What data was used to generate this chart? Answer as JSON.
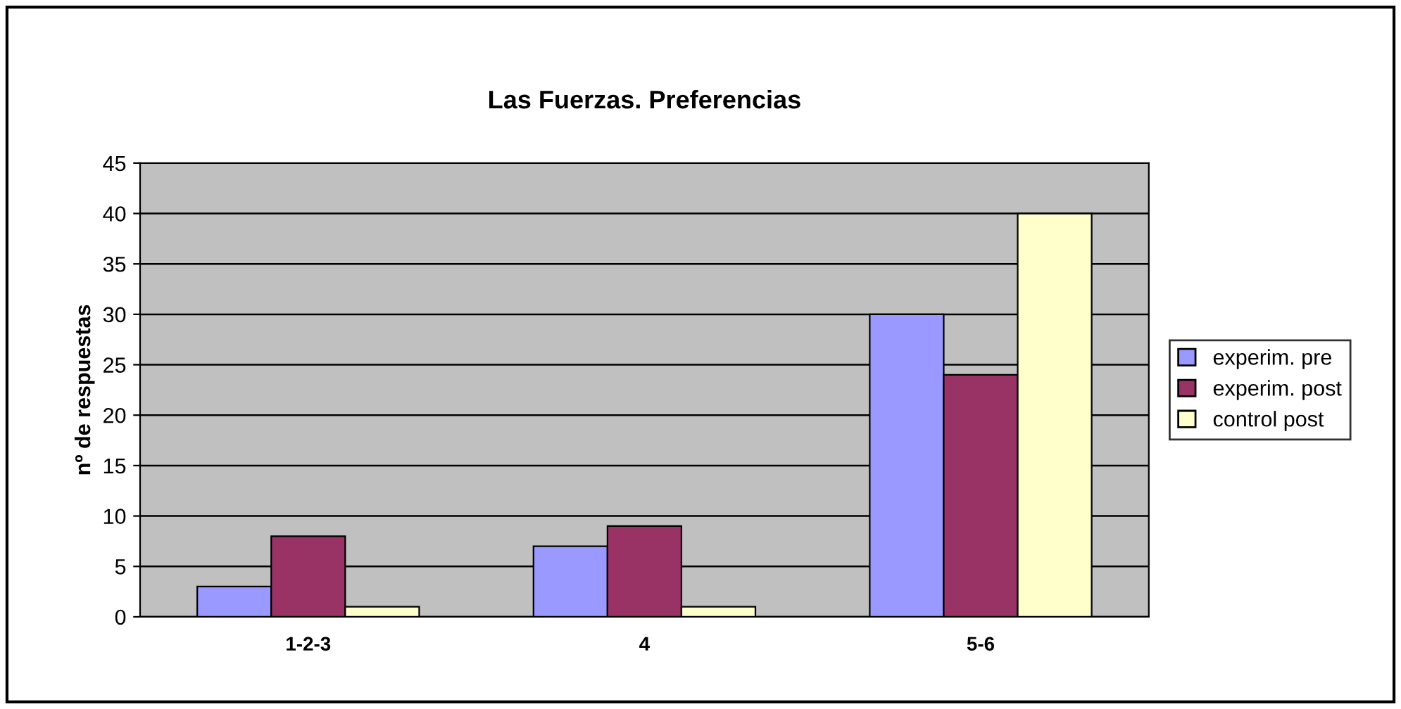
{
  "chart_data": {
    "type": "bar",
    "title": "Las Fuerzas. Preferencias",
    "ylabel": "nº de respuestas",
    "categories": [
      "1-2-3",
      "4",
      "5-6"
    ],
    "series": [
      {
        "name": "experim. pre",
        "color": "#9999ff",
        "values": [
          3,
          7,
          30
        ]
      },
      {
        "name": "experim. post",
        "color": "#993366",
        "values": [
          8,
          9,
          24
        ]
      },
      {
        "name": "control post",
        "color": "#ffffcc",
        "values": [
          1,
          1,
          40
        ]
      }
    ],
    "ylim": [
      0,
      45
    ],
    "yticks": [
      0,
      5,
      10,
      15,
      20,
      25,
      30,
      35,
      40,
      45
    ],
    "grid": "y",
    "legend": "right"
  }
}
